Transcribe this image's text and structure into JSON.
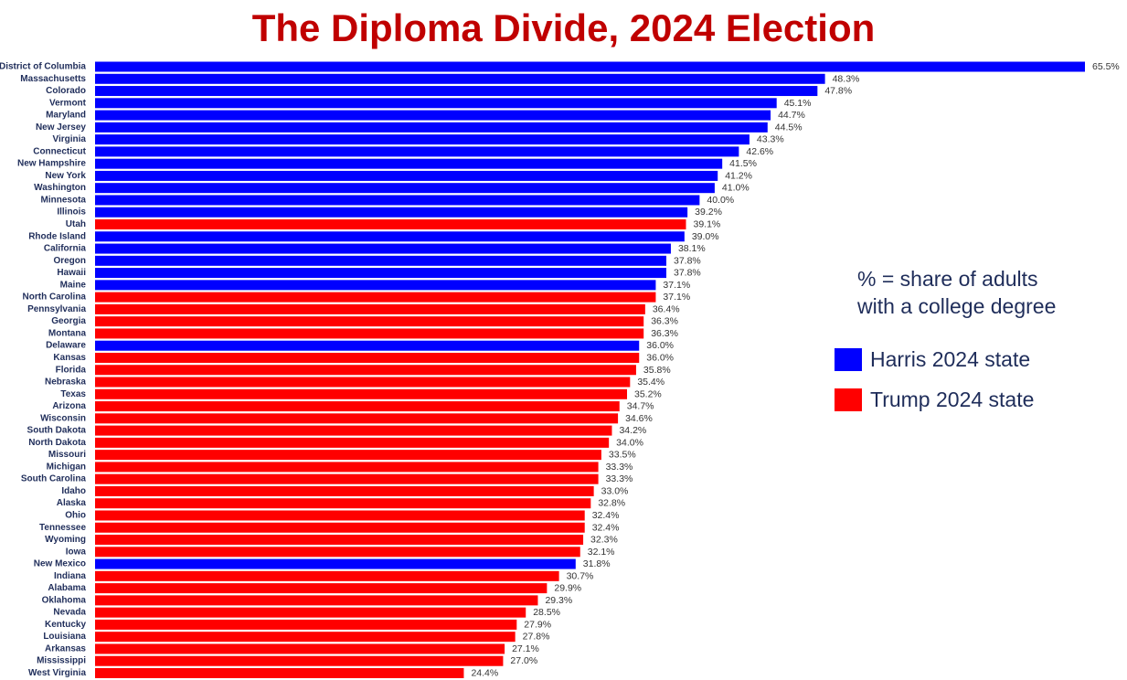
{
  "chart_data": {
    "type": "bar",
    "orientation": "horizontal",
    "title": "The Diploma Divide, 2024 Election",
    "note_line1": "% = share of adults",
    "note_line2": "with a college degree",
    "xlim": [
      0,
      65.5
    ],
    "value_suffix": "%",
    "legend": [
      {
        "key": "D",
        "label": "Harris 2024 state",
        "color": "#0000ff"
      },
      {
        "key": "R",
        "label": "Trump 2024 state",
        "color": "#ff0000"
      }
    ],
    "categories": [
      "District of Columbia",
      "Massachusetts",
      "Colorado",
      "Vermont",
      "Maryland",
      "New Jersey",
      "Virginia",
      "Connecticut",
      "New Hampshire",
      "New York",
      "Washington",
      "Minnesota",
      "Illinois",
      "Utah",
      "Rhode Island",
      "California",
      "Oregon",
      "Hawaii",
      "Maine",
      "North Carolina",
      "Pennsylvania",
      "Georgia",
      "Montana",
      "Delaware",
      "Kansas",
      "Florida",
      "Nebraska",
      "Texas",
      "Arizona",
      "Wisconsin",
      "South Dakota",
      "North Dakota",
      "Missouri",
      "Michigan",
      "South Carolina",
      "Idaho",
      "Alaska",
      "Ohio",
      "Tennessee",
      "Wyoming",
      "Iowa",
      "New Mexico",
      "Indiana",
      "Alabama",
      "Oklahoma",
      "Nevada",
      "Kentucky",
      "Louisiana",
      "Arkansas",
      "Mississippi",
      "West Virginia"
    ],
    "values": [
      65.5,
      48.3,
      47.8,
      45.1,
      44.7,
      44.5,
      43.3,
      42.6,
      41.5,
      41.2,
      41.0,
      40.0,
      39.2,
      39.1,
      39.0,
      38.1,
      37.8,
      37.8,
      37.1,
      37.1,
      36.4,
      36.3,
      36.3,
      36.0,
      36.0,
      35.8,
      35.4,
      35.2,
      34.7,
      34.6,
      34.2,
      34.0,
      33.5,
      33.3,
      33.3,
      33.0,
      32.8,
      32.4,
      32.4,
      32.3,
      32.1,
      31.8,
      30.7,
      29.9,
      29.3,
      28.5,
      27.9,
      27.8,
      27.1,
      27.0,
      24.4
    ],
    "labels": [
      "65.5%",
      "48.3%",
      "47.8%",
      "45.1%",
      "44.7%",
      "44.5%",
      "43.3%",
      "42.6%",
      "41.5%",
      "41.2%",
      "41.0%",
      "40.0%",
      "39.2%",
      "39.1%",
      "39.0%",
      "38.1%",
      "37.8%",
      "37.8%",
      "37.1%",
      "37.1%",
      "36.4%",
      "36.3%",
      "36.3%",
      "36.0%",
      "36.0%",
      "35.8%",
      "35.4%",
      "35.2%",
      "34.7%",
      "34.6%",
      "34.2%",
      "34.0%",
      "33.5%",
      "33.3%",
      "33.3%",
      "33.0%",
      "32.8%",
      "32.4%",
      "32.4%",
      "32.3%",
      "32.1%",
      "31.8%",
      "30.7%",
      "29.9%",
      "29.3%",
      "28.5%",
      "27.9%",
      "27.8%",
      "27.1%",
      "27.0%",
      "24.4%"
    ],
    "winner": [
      "D",
      "D",
      "D",
      "D",
      "D",
      "D",
      "D",
      "D",
      "D",
      "D",
      "D",
      "D",
      "D",
      "R",
      "D",
      "D",
      "D",
      "D",
      "D",
      "R",
      "R",
      "R",
      "R",
      "D",
      "R",
      "R",
      "R",
      "R",
      "R",
      "R",
      "R",
      "R",
      "R",
      "R",
      "R",
      "R",
      "R",
      "R",
      "R",
      "R",
      "R",
      "D",
      "R",
      "R",
      "R",
      "R",
      "R",
      "R",
      "R",
      "R",
      "R"
    ]
  }
}
